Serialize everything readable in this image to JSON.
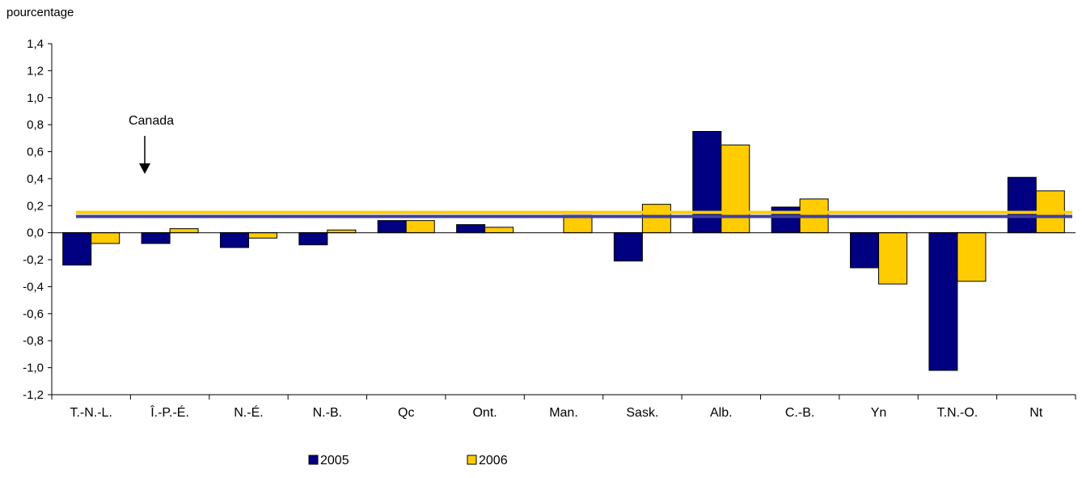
{
  "chart_data": {
    "type": "bar",
    "ylabel": "pourcentage",
    "ylim": [
      -1.2,
      1.4
    ],
    "yticks": [
      "1,4",
      "1,2",
      "1,0",
      "0,8",
      "0,6",
      "0,4",
      "0,2",
      "0,0",
      "-0,2",
      "-0,4",
      "-0,6",
      "-0,8",
      "-1,0",
      "-1,2"
    ],
    "ytick_values": [
      1.4,
      1.2,
      1.0,
      0.8,
      0.6,
      0.4,
      0.2,
      0.0,
      -0.2,
      -0.4,
      -0.6,
      -0.8,
      -1.0,
      -1.2
    ],
    "categories": [
      "T.-N.-L.",
      "Î.-P.-É.",
      "N.-É.",
      "N.-B.",
      "Qc",
      "Ont.",
      "Man.",
      "Sask.",
      "Alb.",
      "C.-B.",
      "Yn",
      "T.N.-O.",
      "Nt"
    ],
    "series": [
      {
        "name": "2005",
        "color": "#000080",
        "values": [
          -0.24,
          -0.08,
          -0.11,
          -0.09,
          0.09,
          0.06,
          0.0,
          -0.21,
          0.75,
          0.19,
          -0.26,
          -1.02,
          0.41
        ]
      },
      {
        "name": "2006",
        "color": "#FFCC00",
        "values": [
          -0.08,
          0.03,
          -0.04,
          0.02,
          0.09,
          0.04,
          0.13,
          0.21,
          0.65,
          0.25,
          -0.38,
          -0.36,
          0.31
        ]
      }
    ],
    "reference_lines": [
      {
        "series": "2005",
        "value": 0.12,
        "color": "#4040a0"
      },
      {
        "series": "2006",
        "value": 0.15,
        "color": "#FFCC00"
      }
    ],
    "annotation": {
      "text": "Canada",
      "arrow": "down"
    },
    "grid": false,
    "legend_position": "bottom-center"
  }
}
